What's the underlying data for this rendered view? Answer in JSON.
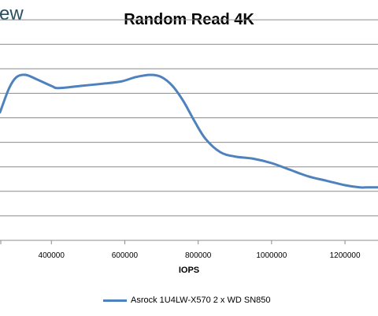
{
  "watermark": "ew",
  "chart_data": {
    "type": "line",
    "title": "Random Read 4K",
    "xlabel": "IOPS",
    "ylabel": "",
    "x_ticks": [
      400000,
      600000,
      800000,
      1000000,
      1200000
    ],
    "x_tick_labels": [
      "400000",
      "600000",
      "800000",
      "1000000",
      "1200000"
    ],
    "xlim": [
      260000,
      1290000
    ],
    "y_gridlines": 9,
    "grid": true,
    "legend": "bottom",
    "series": [
      {
        "name": "Asrock 1U4LW-X570 2 x WD SN850",
        "color": "#4f81bd",
        "x": [
          260000,
          285000,
          305000,
          330000,
          360000,
          400000,
          420000,
          480000,
          540000,
          590000,
          630000,
          670000,
          700000,
          730000,
          760000,
          790000,
          820000,
          860000,
          900000,
          950000,
          1000000,
          1050000,
          1100000,
          1150000,
          1200000,
          1240000,
          1260000,
          1290000
        ],
        "y": [
          58,
          69,
          74,
          75,
          73,
          70,
          69,
          70,
          71,
          72,
          74,
          75,
          74,
          70,
          63,
          54,
          46,
          40,
          38,
          37,
          35,
          32,
          29,
          27,
          25,
          24,
          24,
          24
        ]
      }
    ]
  }
}
